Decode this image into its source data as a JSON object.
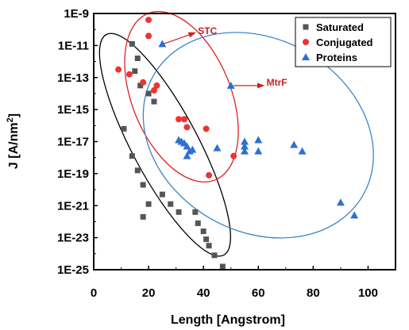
{
  "chart_data": {
    "type": "scatter",
    "title": "",
    "xlabel": "Length [Angstrom]",
    "ylabel_main": "J [A/nm",
    "ylabel_sup": "2",
    "ylabel_tail": "]",
    "xlim": [
      0,
      110
    ],
    "ylim_log10": [
      -25,
      -9
    ],
    "x_ticks": [
      0,
      20,
      40,
      60,
      80,
      100
    ],
    "y_ticks": [
      {
        "exp": -9,
        "label": "1E-9"
      },
      {
        "exp": -11,
        "label": "1E-11"
      },
      {
        "exp": -13,
        "label": "1E-13"
      },
      {
        "exp": -15,
        "label": "1E-15"
      },
      {
        "exp": -17,
        "label": "1E-17"
      },
      {
        "exp": -19,
        "label": "1E-19"
      },
      {
        "exp": -21,
        "label": "1E-21"
      },
      {
        "exp": -23,
        "label": "1E-23"
      },
      {
        "exp": -25,
        "label": "1E-25"
      }
    ],
    "legend_position": "top-right",
    "series": [
      {
        "name": "Saturated",
        "marker": "square",
        "color": "#555555",
        "points": [
          [
            14,
            -10.9
          ],
          [
            16,
            -11.8
          ],
          [
            15,
            -12.6
          ],
          [
            17,
            -13.5
          ],
          [
            20,
            -14.0
          ],
          [
            22,
            -14.5
          ],
          [
            11,
            -16.2
          ],
          [
            14,
            -17.9
          ],
          [
            16,
            -18.8
          ],
          [
            18,
            -19.7
          ],
          [
            25,
            -20.3
          ],
          [
            20,
            -20.9
          ],
          [
            28,
            -20.9
          ],
          [
            31,
            -21.4
          ],
          [
            18,
            -21.7
          ],
          [
            37,
            -21.4
          ],
          [
            38,
            -22.1
          ],
          [
            40,
            -22.6
          ],
          [
            41,
            -23.1
          ],
          [
            42,
            -23.5
          ],
          [
            44,
            -24.1
          ],
          [
            47,
            -24.8
          ]
        ]
      },
      {
        "name": "Conjugated",
        "marker": "circle",
        "color": "#ee3333",
        "points": [
          [
            20,
            -9.4
          ],
          [
            20,
            -10.4
          ],
          [
            9,
            -12.5
          ],
          [
            13,
            -12.8
          ],
          [
            18,
            -13.3
          ],
          [
            23,
            -13.5
          ],
          [
            22,
            -13.8
          ],
          [
            31,
            -15.6
          ],
          [
            33,
            -15.6
          ],
          [
            34,
            -16.1
          ],
          [
            41,
            -16.2
          ],
          [
            42,
            -19.1
          ],
          [
            51,
            -17.9
          ]
        ]
      },
      {
        "name": "Proteins",
        "marker": "triangle",
        "color": "#2e6fcf",
        "points": [
          [
            25,
            -10.9
          ],
          [
            50,
            -13.5
          ],
          [
            31,
            -16.9
          ],
          [
            32,
            -17.0
          ],
          [
            33,
            -17.1
          ],
          [
            34,
            -17.3
          ],
          [
            35,
            -17.6
          ],
          [
            45,
            -17.4
          ],
          [
            55,
            -17.3
          ],
          [
            55,
            -17.6
          ],
          [
            55,
            -17.0
          ],
          [
            60,
            -16.9
          ],
          [
            60,
            -17.6
          ],
          [
            73,
            -17.2
          ],
          [
            76,
            -17.6
          ],
          [
            90,
            -20.8
          ],
          [
            95,
            -21.6
          ],
          [
            34,
            -17.9
          ],
          [
            36,
            -17.5
          ]
        ]
      }
    ],
    "annotations": [
      {
        "label": "STC",
        "color": "#cc2222",
        "arrow_from": [
          25.5,
          -10.9
        ],
        "arrow_to": [
          37,
          -10.2
        ],
        "text_at": [
          38,
          -10.1
        ]
      },
      {
        "label": "MtrF",
        "color": "#cc2222",
        "arrow_from": [
          51,
          -13.5
        ],
        "arrow_to": [
          62,
          -13.5
        ],
        "text_at": [
          63,
          -13.3
        ]
      }
    ],
    "ellipses": [
      {
        "name": "saturated-ellipse",
        "color": "#000000",
        "cx": 26,
        "cy_log10": -17.2,
        "rx": 12,
        "ry_log10": 7.8,
        "angle_deg": -28
      },
      {
        "name": "conjugated-ellipse",
        "color": "#dd2222",
        "cx": 32,
        "cy_log10": -14.2,
        "rx": 18,
        "ry_log10": 5.6,
        "angle_deg": -22
      },
      {
        "name": "proteins-ellipse",
        "color": "#3a86c8",
        "cx": 60,
        "cy_log10": -16.6,
        "rx": 44,
        "ry_log10": 6.0,
        "angle_deg": 30
      }
    ]
  }
}
